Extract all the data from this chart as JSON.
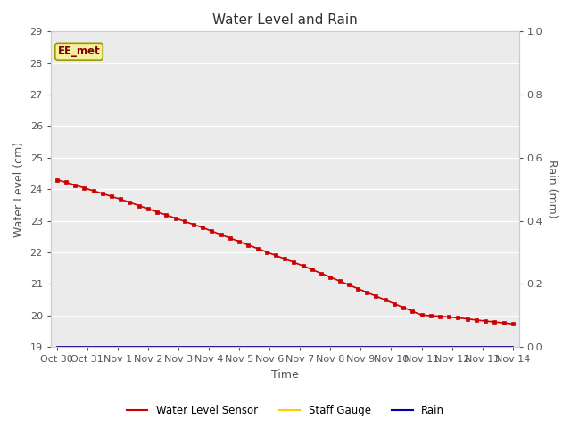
{
  "title": "Water Level and Rain",
  "xlabel": "Time",
  "ylabel_left": "Water Level (cm)",
  "ylabel_right": "Rain (mm)",
  "ylim_left": [
    19.0,
    29.0
  ],
  "ylim_right": [
    0.0,
    1.0
  ],
  "yticks_left": [
    19.0,
    20.0,
    21.0,
    22.0,
    23.0,
    24.0,
    25.0,
    26.0,
    27.0,
    28.0,
    29.0
  ],
  "yticks_right": [
    0.0,
    0.2,
    0.4,
    0.6,
    0.8,
    1.0
  ],
  "x_tick_labels": [
    "Oct 30",
    "Oct 31",
    "Nov 1",
    "Nov 2",
    "Nov 3",
    "Nov 4",
    "Nov 5",
    "Nov 6",
    "Nov 7",
    "Nov 8",
    "Nov 9",
    "Nov 10",
    "Nov 11",
    "Nov 12",
    "Nov 13",
    "Nov 14"
  ],
  "plot_bg_color": "#ebebeb",
  "fig_bg_color": "#ffffff",
  "annotation_text": "EE_met",
  "annotation_bg": "#f5f0a0",
  "annotation_border": "#999900",
  "water_level_color": "#cc0000",
  "staff_gauge_color": "#ffcc00",
  "rain_color": "#0000aa",
  "legend_labels": [
    "Water Level Sensor",
    "Staff Gauge",
    "Rain"
  ],
  "water_level_values": [
    24.3,
    24.22,
    24.13,
    24.04,
    23.95,
    23.86,
    23.77,
    23.68,
    23.58,
    23.48,
    23.38,
    23.28,
    23.18,
    23.08,
    22.98,
    22.88,
    22.78,
    22.67,
    22.56,
    22.45,
    22.34,
    22.23,
    22.12,
    22.01,
    21.9,
    21.79,
    21.68,
    21.57,
    21.45,
    21.33,
    21.21,
    21.09,
    20.97,
    20.85,
    20.73,
    20.61,
    20.49,
    20.37,
    20.25,
    20.13,
    20.01,
    19.99,
    19.97,
    19.95,
    19.92,
    19.89,
    19.85,
    19.82,
    19.79,
    19.76,
    19.73
  ],
  "num_points": 51,
  "staff_gauge_value": 19.0,
  "rain_value": 0.0,
  "grid_color": "#ffffff",
  "spine_color": "#cccccc",
  "tick_color": "#555555",
  "label_fontsize": 9,
  "tick_fontsize": 8,
  "title_fontsize": 11
}
